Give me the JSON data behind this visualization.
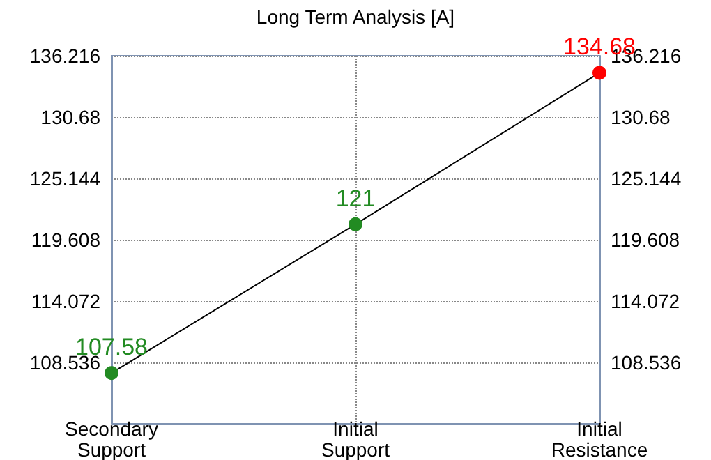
{
  "chart_data": {
    "type": "line",
    "title": "Long Term Analysis [A]",
    "categories": [
      "Secondary\nSupport",
      "Initial\nSupport",
      "Initial\nResistance"
    ],
    "series": [
      {
        "color": "#000000",
        "values": [
          107.58,
          121,
          134.68
        ]
      }
    ],
    "colors": [
      "#228b22",
      "#228b22",
      "#ff0000"
    ],
    "ylim": [
      103,
      136.216
    ],
    "yticks": [
      108.536,
      114.072,
      119.608,
      125.144,
      130.68,
      136.216
    ],
    "y2lim": [
      103,
      136.216
    ],
    "y2ticks": [
      108.536,
      114.072,
      119.608,
      125.144,
      130.68,
      136.216
    ],
    "grid": true,
    "marker": "circle",
    "line_style": "solid",
    "data_labels": true
  }
}
